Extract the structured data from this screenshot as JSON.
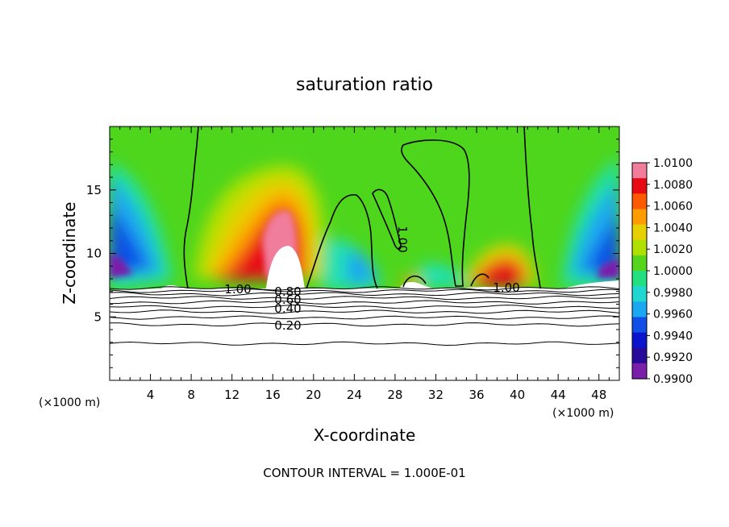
{
  "chart_data": {
    "type": "heatmap",
    "title": "saturation ratio",
    "xlabel": "X-coordinate",
    "ylabel": "Z-coordinate",
    "x_unit_label": "(×1000 m)",
    "x_unit_label_right": "(×1000 m)",
    "xlim": [
      0,
      50
    ],
    "ylim": [
      0,
      20
    ],
    "x_ticks": [
      4,
      8,
      12,
      16,
      20,
      24,
      28,
      32,
      36,
      40,
      44,
      48
    ],
    "y_ticks": [
      5,
      10,
      15
    ],
    "footer": "CONTOUR INTERVAL = 1.000E-01",
    "colorbar": {
      "min": 0.99,
      "max": 1.01,
      "labels": [
        "1.0100",
        "1.0080",
        "1.0060",
        "1.0040",
        "1.0020",
        "1.0000",
        "0.9980",
        "0.9960",
        "0.9940",
        "0.9920",
        "0.9900"
      ],
      "colors": [
        "#f07d9b",
        "#e80a12",
        "#ff5a00",
        "#ff9d00",
        "#e6d000",
        "#b0e000",
        "#55d51e",
        "#22e080",
        "#20d6d0",
        "#1aa8f0",
        "#1050e6",
        "#0a14cc",
        "#280a9a",
        "#7a1faa"
      ]
    },
    "contour_labels": [
      "1.00",
      "0.80",
      "0.60",
      "0.40",
      "0.20",
      "1.00",
      "1.00"
    ],
    "contour_levels_lower": [
      0.1,
      0.2,
      0.3,
      0.4,
      0.5,
      0.6,
      0.7,
      0.8,
      0.9,
      1.0
    ]
  }
}
